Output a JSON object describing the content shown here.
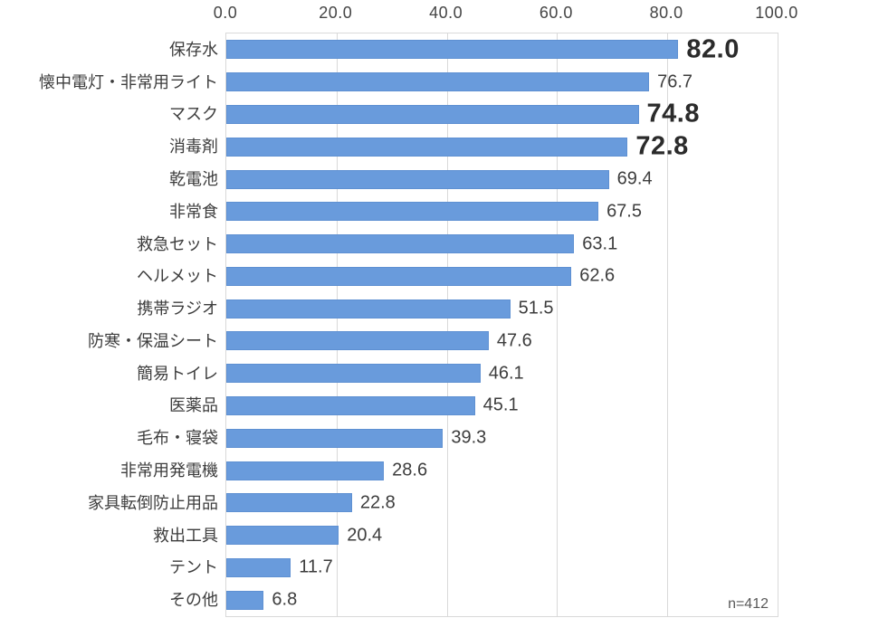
{
  "chart": {
    "sample_label": "n=412",
    "bar_color": "#699bdc",
    "bar_border_color": "#5e90d2",
    "grid_color": "#d9d9d9",
    "axis_text_color": "#454545",
    "label_text_color": "#3d3d3d",
    "emphasis_text_color": "#2b2b2b"
  },
  "chart_data": {
    "type": "bar",
    "orientation": "horizontal",
    "title": "",
    "xlabel": "",
    "ylabel": "",
    "xlim": [
      0,
      100
    ],
    "x_ticks": [
      "0.0",
      "20.0",
      "40.0",
      "60.0",
      "80.0",
      "100.0"
    ],
    "grid": true,
    "legend": false,
    "annotation": "n=412",
    "categories": [
      "保存水",
      "懐中電灯・非常用ライト",
      "マスク",
      "消毒剤",
      "乾電池",
      "非常食",
      "救急セット",
      "ヘルメット",
      "携帯ラジオ",
      "防寒・保温シート",
      "簡易トイレ",
      "医薬品",
      "毛布・寝袋",
      "非常用発電機",
      "家具転倒防止用品",
      "救出工具",
      "テント",
      "その他"
    ],
    "values": [
      82.0,
      76.7,
      74.8,
      72.8,
      69.4,
      67.5,
      63.1,
      62.6,
      51.5,
      47.6,
      46.1,
      45.1,
      39.3,
      28.6,
      22.8,
      20.4,
      11.7,
      6.8
    ],
    "emphasized_indices": [
      0,
      2,
      3
    ]
  }
}
